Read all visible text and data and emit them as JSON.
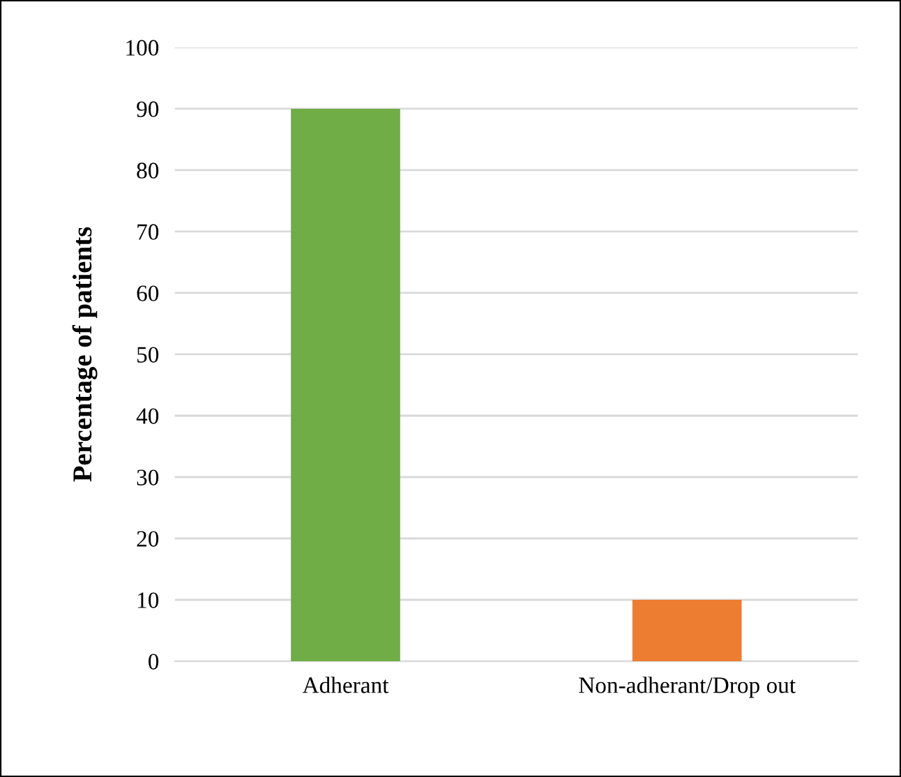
{
  "chart_data": {
    "type": "bar",
    "ylabel": "Percentage of patients",
    "categories": [
      "Adherant",
      "Non-adherant/Drop out"
    ],
    "values": [
      90,
      10
    ],
    "colors": [
      "#70ad47",
      "#ed7d31"
    ],
    "ylim": [
      0,
      100
    ],
    "yticks": [
      0,
      10,
      20,
      30,
      40,
      50,
      60,
      70,
      80,
      90,
      100
    ],
    "grid": "y"
  }
}
